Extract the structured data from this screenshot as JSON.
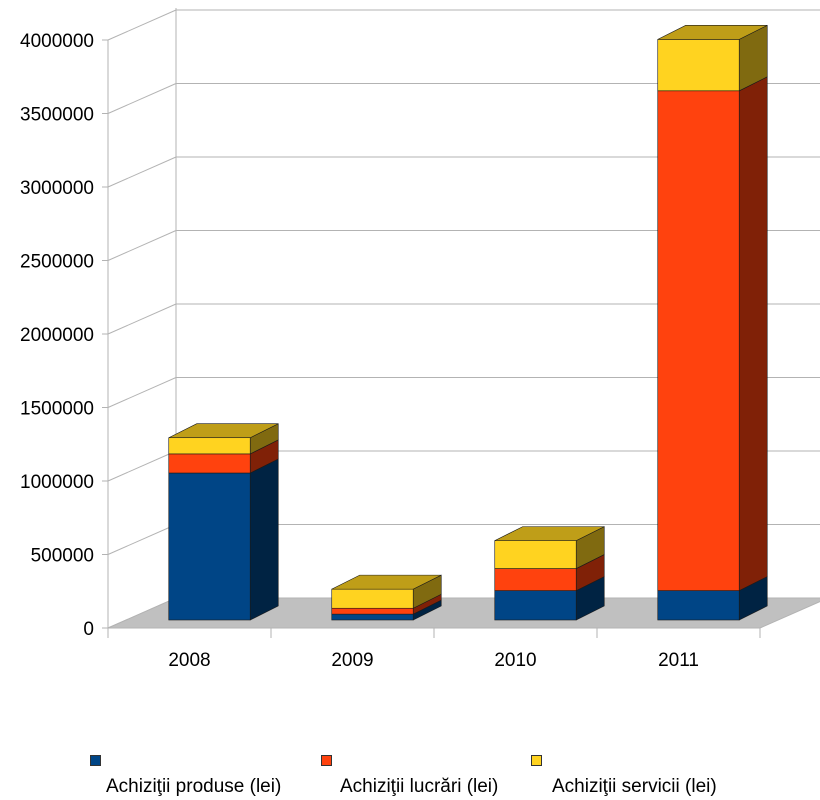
{
  "chart_data": {
    "type": "bar",
    "stacked": true,
    "style": "3d",
    "categories": [
      "2008",
      "2009",
      "2010",
      "2011"
    ],
    "ylim": [
      0,
      4000000
    ],
    "yticks": [
      "0",
      "500000",
      "1000000",
      "1500000",
      "2000000",
      "2500000",
      "3000000",
      "3500000",
      "4000000"
    ],
    "grid": true,
    "legend_position": "bottom",
    "series": [
      {
        "name": "Achiziţii produse (lei)",
        "color": "#004586",
        "values": [
          1000000,
          40000,
          200000,
          200000
        ]
      },
      {
        "name": "Achiziţii lucrări (lei)",
        "color": "#ff420e",
        "values": [
          130000,
          40000,
          150000,
          3400000
        ]
      },
      {
        "name": "Achiziţii servicii (lei)",
        "color": "#ffd320",
        "values": [
          110000,
          130000,
          190000,
          350000
        ]
      }
    ]
  }
}
